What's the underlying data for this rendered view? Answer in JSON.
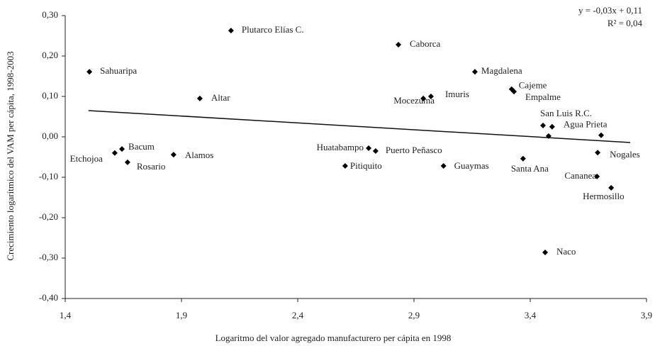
{
  "chart_data": {
    "type": "scatter",
    "x_label": "Logaritmo del valor agregado manufacturero per cápita en 1998",
    "y_label": "Crecimiento logarítmico del VAM per cápita, 1998-2003",
    "annotations": [
      "y = -0,03x + 0,11",
      "R² = 0,04"
    ],
    "labels": [
      "Sahuaripa",
      "Plutarco Elías C.",
      "Caborca",
      "Magdalena",
      "Altar",
      "Mocezuma",
      "Imuris",
      "Cajeme",
      "Empalme",
      "San Luis R.C.",
      "Agua Prieta",
      null,
      null,
      "Etchojoa",
      "Bacum",
      "Rosario",
      "Alamos",
      "Huatabampo",
      "Puerto Peñasco",
      "Pitiquito",
      "Guaymas",
      "Santa Ana",
      "Nogales",
      "Cananea",
      "Hermosillo",
      "Naco"
    ],
    "x": [
      1.504,
      2.113,
      2.833,
      3.162,
      1.979,
      2.94,
      2.973,
      3.32,
      3.33,
      3.455,
      3.494,
      3.479,
      3.705,
      1.613,
      1.644,
      1.668,
      1.866,
      2.705,
      2.735,
      2.604,
      3.027,
      3.369,
      3.69,
      3.687,
      3.748,
      3.464
    ],
    "y": [
      0.161,
      0.263,
      0.228,
      0.161,
      0.095,
      0.095,
      0.1,
      0.118,
      0.112,
      0.028,
      0.025,
      0.002,
      0.004,
      -0.04,
      -0.03,
      -0.063,
      -0.044,
      -0.028,
      -0.035,
      -0.072,
      -0.072,
      -0.054,
      -0.039,
      -0.098,
      -0.126,
      -0.286
    ],
    "color": "#000000",
    "trendline": {
      "x": [
        1.5,
        3.83
      ],
      "y": [
        0.065,
        -0.014
      ]
    },
    "xlim": [
      1.4,
      3.9
    ],
    "xticks": [
      {
        "value": 1.4,
        "label": "1,4"
      },
      {
        "value": 1.9,
        "label": "1,9"
      },
      {
        "value": 2.4,
        "label": "2,4"
      },
      {
        "value": 2.9,
        "label": "2,9"
      },
      {
        "value": 3.4,
        "label": "3,4"
      },
      {
        "value": 3.9,
        "label": "3,9"
      }
    ],
    "ylim": [
      -0.4,
      0.3
    ],
    "yticks": [
      {
        "value": -0.4,
        "label": "-0,40"
      },
      {
        "value": -0.3,
        "label": "-0,30"
      },
      {
        "value": -0.2,
        "label": "-0,20"
      },
      {
        "value": -0.1,
        "label": "-0,10"
      },
      {
        "value": 0,
        "label": "0,00"
      },
      {
        "value": 0.1,
        "label": "0,10"
      },
      {
        "value": 0.2,
        "label": "0,20"
      },
      {
        "value": 0.3,
        "label": "0,30"
      }
    ],
    "grid": false
  }
}
